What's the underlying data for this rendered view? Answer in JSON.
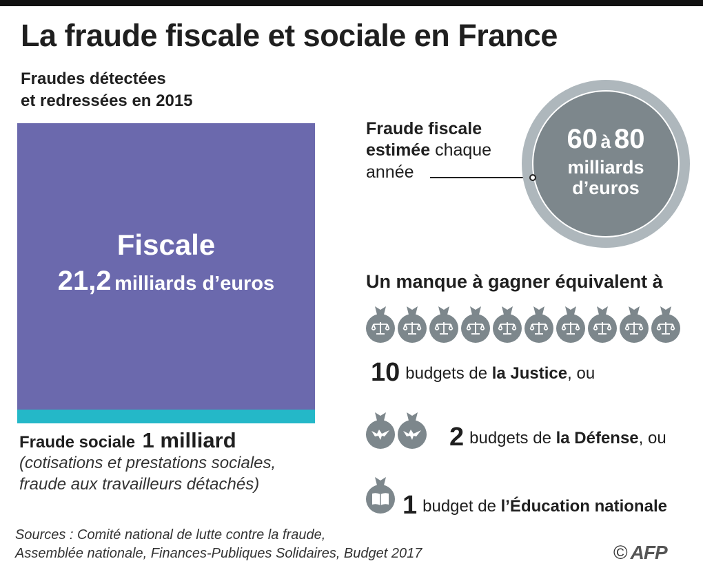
{
  "title": "La fraude fiscale et sociale en France",
  "subtitle": {
    "line1": "Fraudes détectées",
    "line2": "et redressées en 2015"
  },
  "chart_data": {
    "type": "area-proportional",
    "title": "Fraudes détectées et redressées en 2015",
    "unit": "milliards d’euros",
    "categories": [
      "Fiscale",
      "Fraude sociale"
    ],
    "values": [
      21.2,
      1.0
    ],
    "colors": [
      "#6b69ad",
      "#24b8c8"
    ]
  },
  "fiscal": {
    "name": "Fiscale",
    "number": "21,2",
    "unit": "milliards d’euros"
  },
  "social": {
    "label": "Fraude sociale",
    "number": "1 milliard",
    "note_line1": "(cotisations et prestations sociales,",
    "note_line2": "fraude aux travailleurs détachés)"
  },
  "estimate": {
    "line1_bold": "Fraude fiscale",
    "line2_bold": "estimée",
    "line2_rest": " chaque",
    "line3": "année",
    "range_low": "60",
    "range_sep": "à",
    "range_high": "80",
    "unit_line1": "milliards",
    "unit_line2": "d’euros"
  },
  "equivalent": {
    "heading": "Un manque à gagner équivalent à",
    "items": [
      {
        "icon": "justice-scales-icon",
        "count": 10,
        "number": "10",
        "pre": "budgets de",
        "bold": "la Justice",
        "post": ", ou"
      },
      {
        "icon": "defense-eagle-icon",
        "count": 2,
        "number": "2",
        "pre": "budgets de",
        "bold": "la Défense",
        "post": ", ou"
      },
      {
        "icon": "education-book-icon",
        "count": 1,
        "number": "1",
        "pre": "budget de",
        "bold": "l’Éducation nationale",
        "post": ""
      }
    ]
  },
  "sources": {
    "line1": "Sources : Comité national de lutte contre la fraude,",
    "line2": "Assemblée nationale, Finances-Publiques Solidaires, Budget 2017"
  },
  "credit": {
    "copyright": "©",
    "logo": "AFP"
  },
  "colors": {
    "fiscal": "#6b69ad",
    "social": "#24b8c8",
    "gray": "#7d878c",
    "ring": "#aeb7bc"
  }
}
